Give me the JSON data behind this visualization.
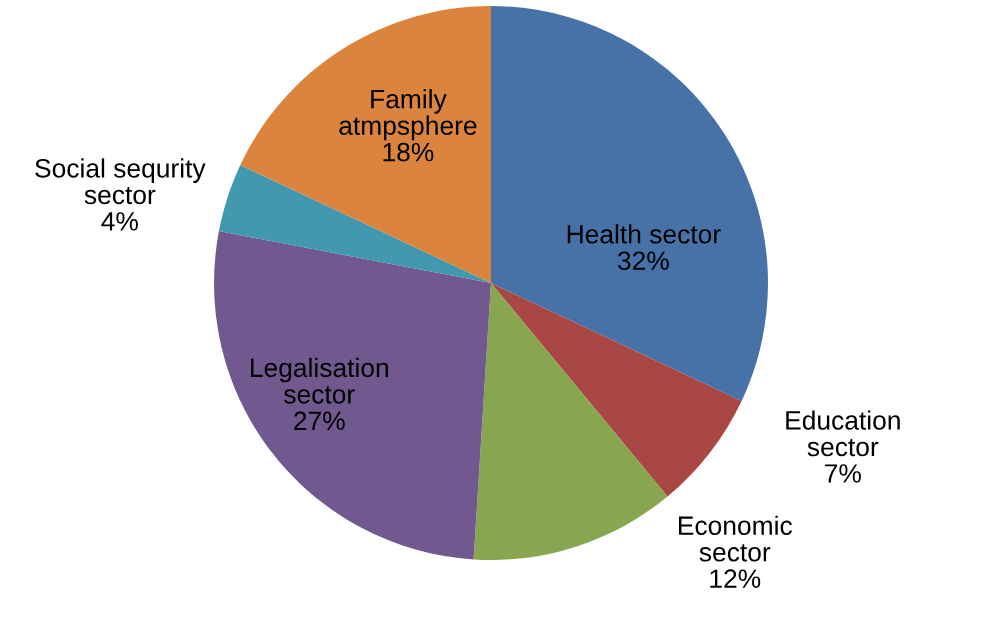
{
  "chart_data": {
    "type": "pie",
    "categories": [
      "Health sector",
      "Education\nsector",
      "Economic\nsector",
      "Legalisation\nsector",
      "Social sequrity\nsector",
      "Family\natmpsphere"
    ],
    "values": [
      32,
      7,
      12,
      27,
      4,
      18
    ],
    "value_labels": [
      "32%",
      "7%",
      "12%",
      "27%",
      "4%",
      "18%"
    ],
    "colors": [
      "#4672a8",
      "#a84744",
      "#88a54f",
      "#71588f",
      "#4198af",
      "#db843d"
    ],
    "legend": false
  }
}
